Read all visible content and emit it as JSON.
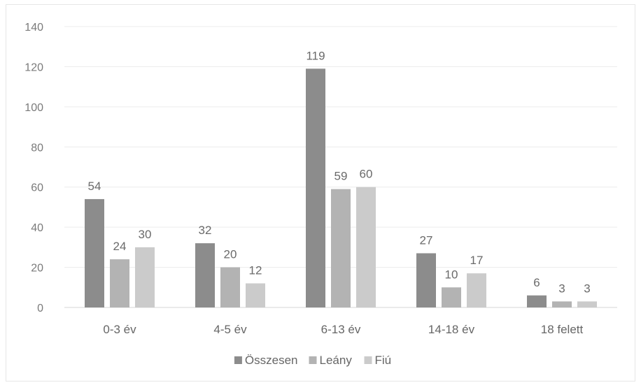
{
  "chart_data": {
    "type": "bar",
    "title": "",
    "xlabel": "",
    "ylabel": "",
    "ylim": [
      0,
      140
    ],
    "yticks": [
      0,
      20,
      40,
      60,
      80,
      100,
      120,
      140
    ],
    "grid": true,
    "legend_position": "bottom",
    "categories": [
      "0-3 év",
      "4-5 év",
      "6-13 év",
      "14-18 év",
      "18 felett"
    ],
    "series": [
      {
        "name": "Összesen",
        "values": [
          54,
          32,
          119,
          27,
          6
        ],
        "color": "#8c8c8c"
      },
      {
        "name": "Leány",
        "values": [
          24,
          20,
          59,
          10,
          3
        ],
        "color": "#b3b3b3"
      },
      {
        "name": "Fiú",
        "values": [
          30,
          12,
          60,
          17,
          3
        ],
        "color": "#cbcbcb"
      }
    ]
  }
}
